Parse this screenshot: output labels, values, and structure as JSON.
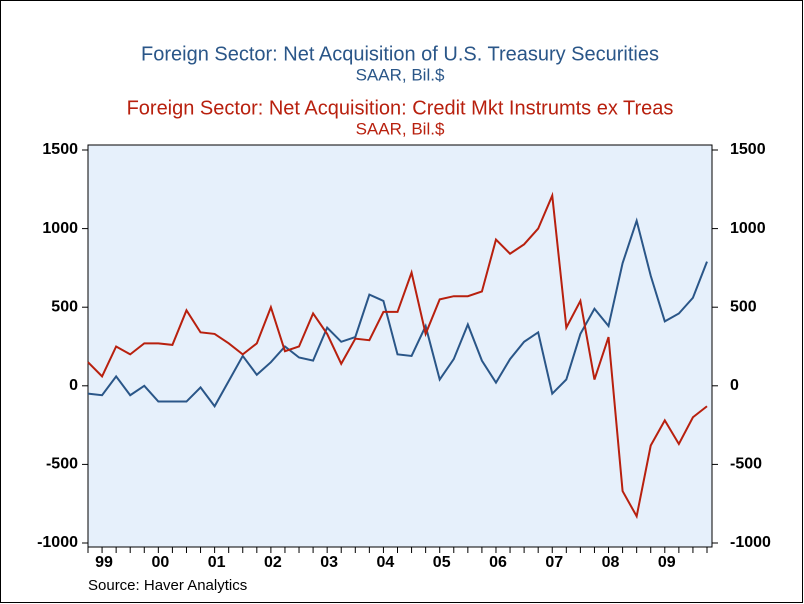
{
  "chart_data": {
    "type": "line",
    "source": "Source: Haver Analytics",
    "categories": [
      null,
      "99",
      null,
      null,
      null,
      "00",
      null,
      null,
      null,
      "01",
      null,
      null,
      null,
      "02",
      null,
      null,
      null,
      "03",
      null,
      null,
      null,
      "04",
      null,
      null,
      null,
      "05",
      null,
      null,
      null,
      "06",
      null,
      null,
      null,
      "07",
      null,
      null,
      null,
      "08",
      null,
      null,
      null,
      "09",
      null,
      null,
      null
    ],
    "series": [
      {
        "name": "Foreign Sector: Net Acquisition of U.S. Treasury Securities",
        "units": "SAAR, Bil.$",
        "color": "#2a5688",
        "values": [
          -50,
          -60,
          60,
          -60,
          0,
          -100,
          -100,
          -100,
          -10,
          -130,
          30,
          190,
          70,
          150,
          250,
          180,
          160,
          370,
          280,
          310,
          580,
          540,
          200,
          190,
          380,
          40,
          170,
          390,
          160,
          20,
          170,
          280,
          340,
          -50,
          40,
          330,
          490,
          380,
          780,
          1050,
          700,
          410,
          460,
          560,
          790
        ]
      },
      {
        "name": "Foreign Sector: Net Acquisition: Credit Mkt Instrumts ex Treas",
        "units": "SAAR, Bil.$",
        "color": "#b8200e",
        "axis": "y2",
        "values": [
          150,
          60,
          250,
          200,
          270,
          270,
          260,
          480,
          340,
          330,
          270,
          200,
          270,
          500,
          220,
          250,
          460,
          330,
          140,
          300,
          290,
          470,
          470,
          720,
          330,
          550,
          570,
          570,
          600,
          930,
          840,
          900,
          1000,
          1210,
          370,
          540,
          40,
          310,
          -670,
          -830,
          -380,
          -220,
          -370,
          -200,
          -130
        ]
      }
    ],
    "ylim": [
      -1000,
      1500
    ],
    "yticks": [
      -1000,
      -500,
      0,
      500,
      1000,
      1500
    ],
    "y2lim": [
      -1000,
      1500
    ],
    "y2ticks": [
      -1000,
      -500,
      0,
      500,
      1000,
      1500
    ],
    "background": "#e6f0fb"
  }
}
